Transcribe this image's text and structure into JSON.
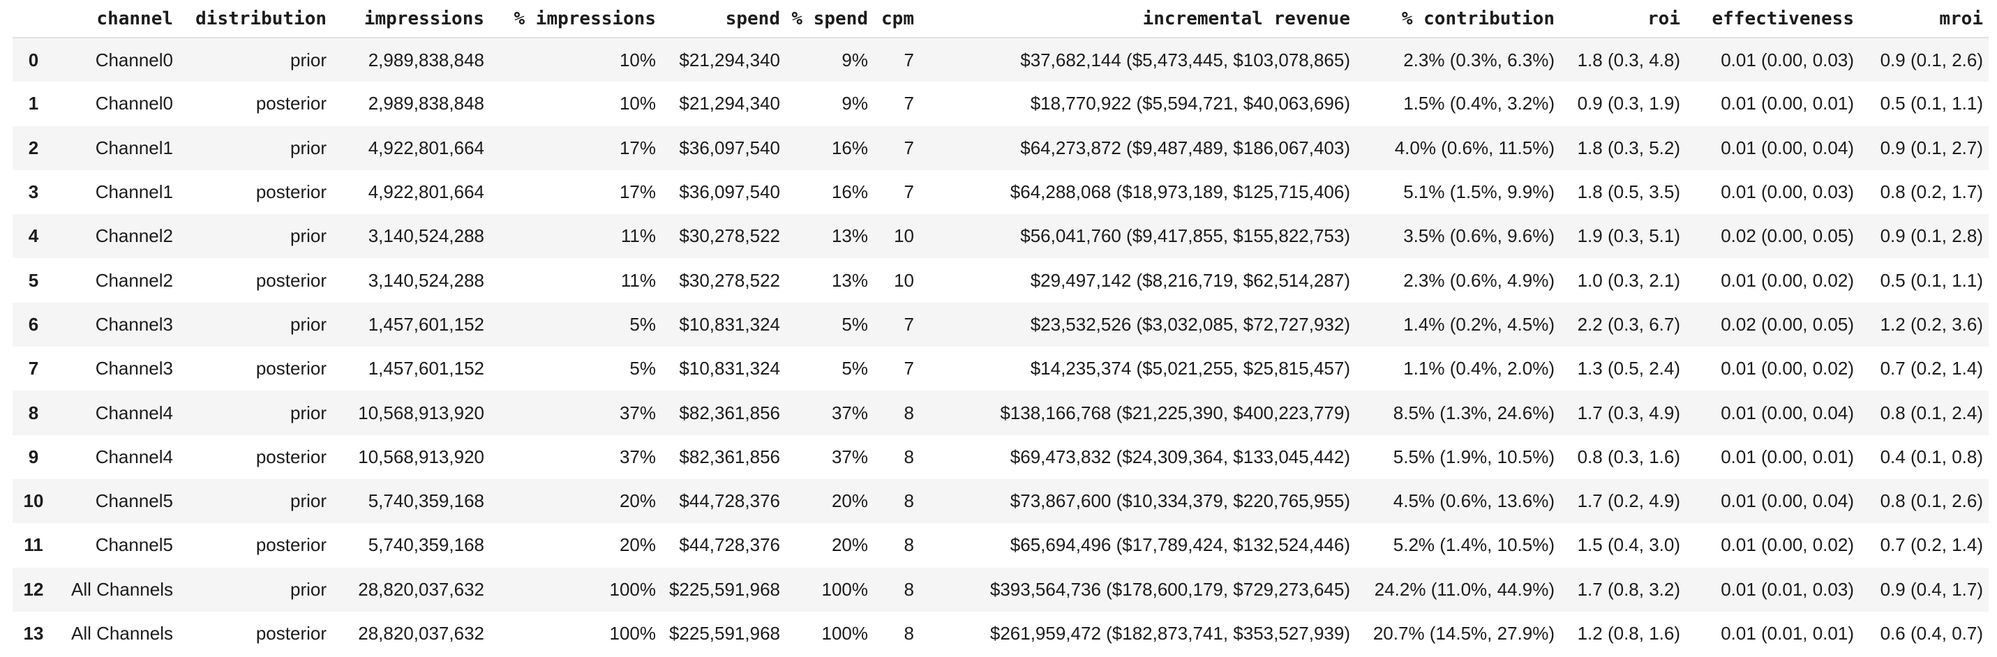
{
  "table": {
    "columns": [
      {
        "id": "index",
        "label": ""
      },
      {
        "id": "channel",
        "label": "channel"
      },
      {
        "id": "distribution",
        "label": "distribution"
      },
      {
        "id": "impressions",
        "label": "impressions"
      },
      {
        "id": "pct_impressions",
        "label": "% impressions"
      },
      {
        "id": "spend",
        "label": "spend"
      },
      {
        "id": "pct_spend",
        "label": "% spend"
      },
      {
        "id": "cpm",
        "label": "cpm"
      },
      {
        "id": "incremental_revenue",
        "label": "incremental revenue"
      },
      {
        "id": "pct_contribution",
        "label": "% contribution"
      },
      {
        "id": "roi",
        "label": "roi"
      },
      {
        "id": "effectiveness",
        "label": "effectiveness"
      },
      {
        "id": "mroi",
        "label": "mroi"
      }
    ],
    "rows": [
      {
        "index": "0",
        "channel": "Channel0",
        "distribution": "prior",
        "impressions": "2,989,838,848",
        "pct_impressions": "10%",
        "spend": "$21,294,340",
        "pct_spend": "9%",
        "cpm": "7",
        "incremental_revenue": "$37,682,144 ($5,473,445, $103,078,865)",
        "pct_contribution": "2.3% (0.3%, 6.3%)",
        "roi": "1.8 (0.3, 4.8)",
        "effectiveness": "0.01 (0.00, 0.03)",
        "mroi": "0.9 (0.1, 2.6)"
      },
      {
        "index": "1",
        "channel": "Channel0",
        "distribution": "posterior",
        "impressions": "2,989,838,848",
        "pct_impressions": "10%",
        "spend": "$21,294,340",
        "pct_spend": "9%",
        "cpm": "7",
        "incremental_revenue": "$18,770,922 ($5,594,721, $40,063,696)",
        "pct_contribution": "1.5% (0.4%, 3.2%)",
        "roi": "0.9 (0.3, 1.9)",
        "effectiveness": "0.01 (0.00, 0.01)",
        "mroi": "0.5 (0.1, 1.1)"
      },
      {
        "index": "2",
        "channel": "Channel1",
        "distribution": "prior",
        "impressions": "4,922,801,664",
        "pct_impressions": "17%",
        "spend": "$36,097,540",
        "pct_spend": "16%",
        "cpm": "7",
        "incremental_revenue": "$64,273,872 ($9,487,489, $186,067,403)",
        "pct_contribution": "4.0% (0.6%, 11.5%)",
        "roi": "1.8 (0.3, 5.2)",
        "effectiveness": "0.01 (0.00, 0.04)",
        "mroi": "0.9 (0.1, 2.7)"
      },
      {
        "index": "3",
        "channel": "Channel1",
        "distribution": "posterior",
        "impressions": "4,922,801,664",
        "pct_impressions": "17%",
        "spend": "$36,097,540",
        "pct_spend": "16%",
        "cpm": "7",
        "incremental_revenue": "$64,288,068 ($18,973,189, $125,715,406)",
        "pct_contribution": "5.1% (1.5%, 9.9%)",
        "roi": "1.8 (0.5, 3.5)",
        "effectiveness": "0.01 (0.00, 0.03)",
        "mroi": "0.8 (0.2, 1.7)"
      },
      {
        "index": "4",
        "channel": "Channel2",
        "distribution": "prior",
        "impressions": "3,140,524,288",
        "pct_impressions": "11%",
        "spend": "$30,278,522",
        "pct_spend": "13%",
        "cpm": "10",
        "incremental_revenue": "$56,041,760 ($9,417,855, $155,822,753)",
        "pct_contribution": "3.5% (0.6%, 9.6%)",
        "roi": "1.9 (0.3, 5.1)",
        "effectiveness": "0.02 (0.00, 0.05)",
        "mroi": "0.9 (0.1, 2.8)"
      },
      {
        "index": "5",
        "channel": "Channel2",
        "distribution": "posterior",
        "impressions": "3,140,524,288",
        "pct_impressions": "11%",
        "spend": "$30,278,522",
        "pct_spend": "13%",
        "cpm": "10",
        "incremental_revenue": "$29,497,142 ($8,216,719, $62,514,287)",
        "pct_contribution": "2.3% (0.6%, 4.9%)",
        "roi": "1.0 (0.3, 2.1)",
        "effectiveness": "0.01 (0.00, 0.02)",
        "mroi": "0.5 (0.1, 1.1)"
      },
      {
        "index": "6",
        "channel": "Channel3",
        "distribution": "prior",
        "impressions": "1,457,601,152",
        "pct_impressions": "5%",
        "spend": "$10,831,324",
        "pct_spend": "5%",
        "cpm": "7",
        "incremental_revenue": "$23,532,526 ($3,032,085, $72,727,932)",
        "pct_contribution": "1.4% (0.2%, 4.5%)",
        "roi": "2.2 (0.3, 6.7)",
        "effectiveness": "0.02 (0.00, 0.05)",
        "mroi": "1.2 (0.2, 3.6)"
      },
      {
        "index": "7",
        "channel": "Channel3",
        "distribution": "posterior",
        "impressions": "1,457,601,152",
        "pct_impressions": "5%",
        "spend": "$10,831,324",
        "pct_spend": "5%",
        "cpm": "7",
        "incremental_revenue": "$14,235,374 ($5,021,255, $25,815,457)",
        "pct_contribution": "1.1% (0.4%, 2.0%)",
        "roi": "1.3 (0.5, 2.4)",
        "effectiveness": "0.01 (0.00, 0.02)",
        "mroi": "0.7 (0.2, 1.4)"
      },
      {
        "index": "8",
        "channel": "Channel4",
        "distribution": "prior",
        "impressions": "10,568,913,920",
        "pct_impressions": "37%",
        "spend": "$82,361,856",
        "pct_spend": "37%",
        "cpm": "8",
        "incremental_revenue": "$138,166,768 ($21,225,390, $400,223,779)",
        "pct_contribution": "8.5% (1.3%, 24.6%)",
        "roi": "1.7 (0.3, 4.9)",
        "effectiveness": "0.01 (0.00, 0.04)",
        "mroi": "0.8 (0.1, 2.4)"
      },
      {
        "index": "9",
        "channel": "Channel4",
        "distribution": "posterior",
        "impressions": "10,568,913,920",
        "pct_impressions": "37%",
        "spend": "$82,361,856",
        "pct_spend": "37%",
        "cpm": "8",
        "incremental_revenue": "$69,473,832 ($24,309,364, $133,045,442)",
        "pct_contribution": "5.5% (1.9%, 10.5%)",
        "roi": "0.8 (0.3, 1.6)",
        "effectiveness": "0.01 (0.00, 0.01)",
        "mroi": "0.4 (0.1, 0.8)"
      },
      {
        "index": "10",
        "channel": "Channel5",
        "distribution": "prior",
        "impressions": "5,740,359,168",
        "pct_impressions": "20%",
        "spend": "$44,728,376",
        "pct_spend": "20%",
        "cpm": "8",
        "incremental_revenue": "$73,867,600 ($10,334,379, $220,765,955)",
        "pct_contribution": "4.5% (0.6%, 13.6%)",
        "roi": "1.7 (0.2, 4.9)",
        "effectiveness": "0.01 (0.00, 0.04)",
        "mroi": "0.8 (0.1, 2.6)"
      },
      {
        "index": "11",
        "channel": "Channel5",
        "distribution": "posterior",
        "impressions": "5,740,359,168",
        "pct_impressions": "20%",
        "spend": "$44,728,376",
        "pct_spend": "20%",
        "cpm": "8",
        "incremental_revenue": "$65,694,496 ($17,789,424, $132,524,446)",
        "pct_contribution": "5.2% (1.4%, 10.5%)",
        "roi": "1.5 (0.4, 3.0)",
        "effectiveness": "0.01 (0.00, 0.02)",
        "mroi": "0.7 (0.2, 1.4)"
      },
      {
        "index": "12",
        "channel": "All Channels",
        "distribution": "prior",
        "impressions": "28,820,037,632",
        "pct_impressions": "100%",
        "spend": "$225,591,968",
        "pct_spend": "100%",
        "cpm": "8",
        "incremental_revenue": "$393,564,736 ($178,600,179, $729,273,645)",
        "pct_contribution": "24.2% (11.0%, 44.9%)",
        "roi": "1.7 (0.8, 3.2)",
        "effectiveness": "0.01 (0.01, 0.03)",
        "mroi": "0.9 (0.4, 1.7)"
      },
      {
        "index": "13",
        "channel": "All Channels",
        "distribution": "posterior",
        "impressions": "28,820,037,632",
        "pct_impressions": "100%",
        "spend": "$225,591,968",
        "pct_spend": "100%",
        "cpm": "8",
        "incremental_revenue": "$261,959,472 ($182,873,741, $353,527,939)",
        "pct_contribution": "20.7% (14.5%, 27.9%)",
        "roi": "1.2 (0.8, 1.6)",
        "effectiveness": "0.01 (0.01, 0.01)",
        "mroi": "0.6 (0.4, 0.7)"
      }
    ]
  },
  "colors": {
    "background": "#ffffff",
    "row_stripe": "#f5f5f5",
    "header_border": "#e1e1e1",
    "text": "#1c1c1c"
  }
}
